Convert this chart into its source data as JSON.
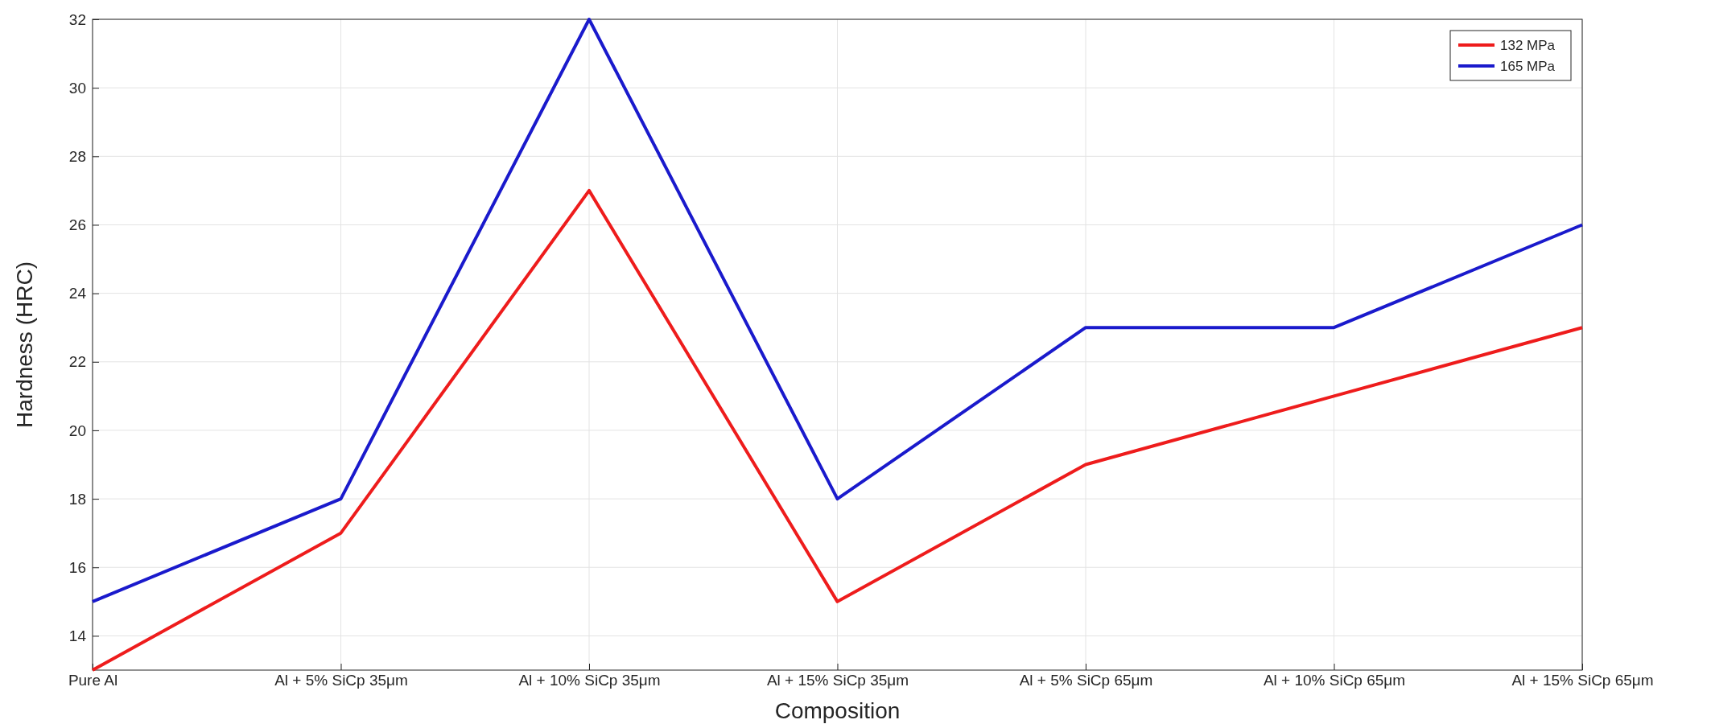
{
  "chart_data": {
    "type": "line",
    "xlabel": "Composition",
    "ylabel": "Hardness (HRC)",
    "categories": [
      "Pure Al",
      "Al + 5% SiCp 35μm",
      "Al + 10% SiCp 35μm",
      "Al + 15% SiCp 35μm",
      "Al + 5% SiCp 65μm",
      "Al + 10% SiCp 65μm",
      "Al + 15% SiCp 65μm"
    ],
    "series": [
      {
        "name": "132 MPa",
        "color": "#ee1c1c",
        "values": [
          13,
          17,
          27,
          15,
          19,
          21,
          23
        ]
      },
      {
        "name": "165 MPa",
        "color": "#1a1acc",
        "values": [
          15,
          18,
          32,
          18,
          23,
          23,
          26
        ]
      }
    ],
    "ylim": [
      13,
      32
    ],
    "yticks": [
      14,
      16,
      18,
      20,
      22,
      24,
      26,
      28,
      30,
      32
    ],
    "grid": true,
    "legend": "top right",
    "marker": "none",
    "line_style": "solid"
  }
}
